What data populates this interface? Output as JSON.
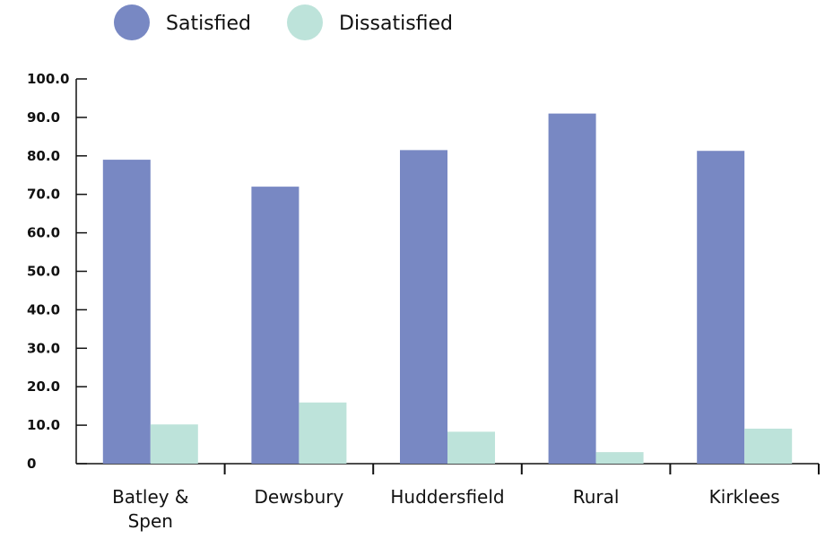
{
  "chart_data": {
    "type": "bar",
    "categories": [
      [
        "Batley &",
        "Spen"
      ],
      [
        "Dewsbury"
      ],
      [
        "Huddersfield"
      ],
      [
        "Rural"
      ],
      [
        "Kirklees"
      ]
    ],
    "series": [
      {
        "name": "Satisfied",
        "color": "#7888c3",
        "values": [
          79.0,
          72.0,
          81.5,
          91.0,
          81.3
        ]
      },
      {
        "name": "Dissatisfied",
        "color": "#bde3da",
        "values": [
          10.2,
          15.9,
          8.3,
          3.0,
          9.1
        ]
      }
    ],
    "yticks": [
      "0",
      "10.0",
      "20.0",
      "30.0",
      "40.0",
      "50.0",
      "60.0",
      "70.0",
      "80.0",
      "90.0",
      "100.0"
    ],
    "ylim": [
      0,
      100
    ],
    "title": "",
    "xlabel": "",
    "ylabel": "",
    "legend_position": "top-left",
    "grid": false
  }
}
